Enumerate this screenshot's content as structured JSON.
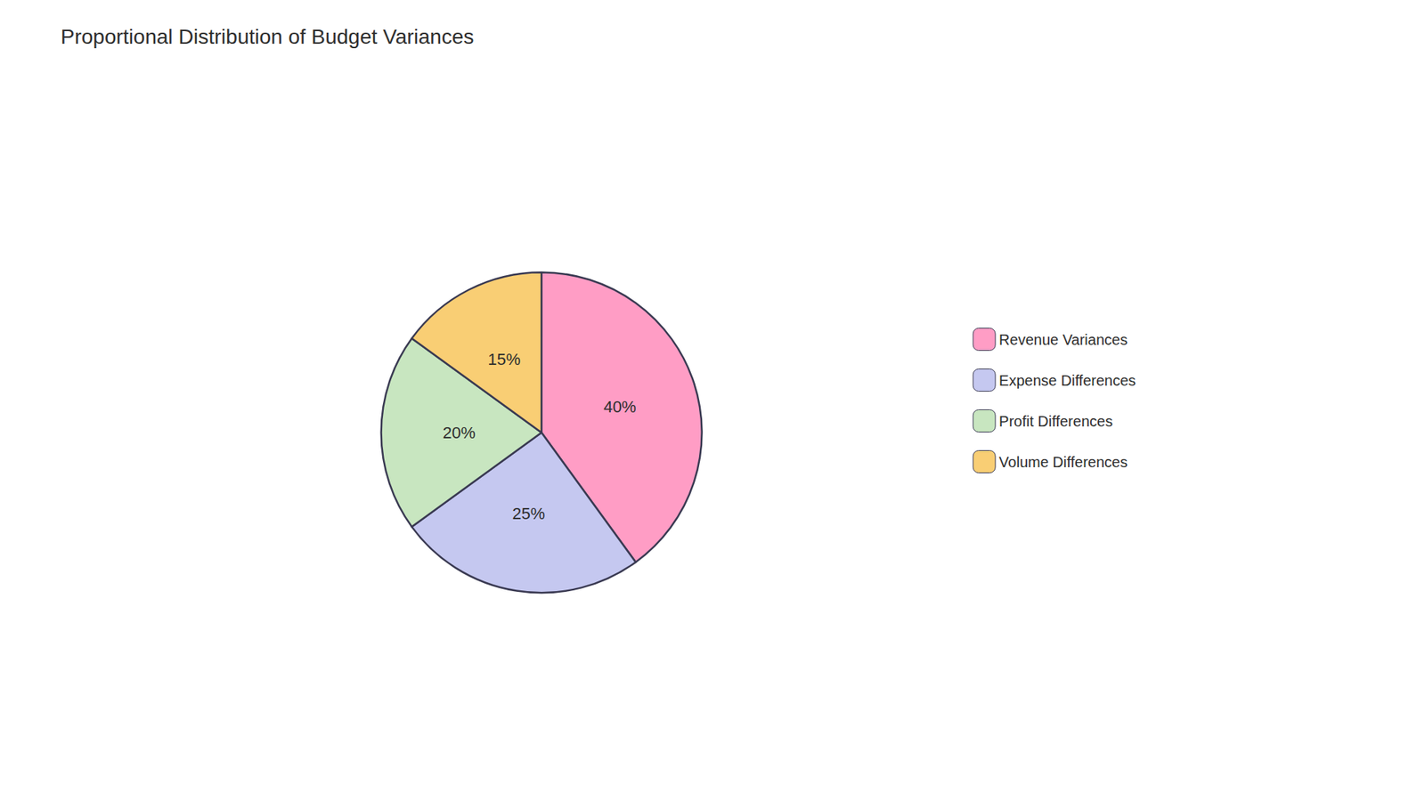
{
  "chart_data": {
    "type": "pie",
    "title": "Proportional Distribution of Budget Variances",
    "categories": [
      "Revenue Variances",
      "Expense Differences",
      "Profit Differences",
      "Volume Differences"
    ],
    "values": [
      40,
      25,
      20,
      15
    ],
    "value_labels": [
      "40%",
      "25%",
      "20%",
      "15%"
    ],
    "colors": [
      "#FF9DC5",
      "#C5C8F0",
      "#C8E6C0",
      "#F9CE74"
    ],
    "data_labels": true,
    "legend": "right"
  }
}
